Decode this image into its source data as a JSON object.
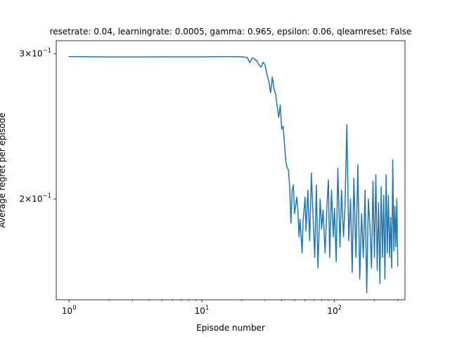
{
  "chart_data": {
    "type": "line",
    "title": "resetrate: 0.04, learningrate: 0.0005, gamma: 0.965, epsilon: 0.06, qlearnreset: False",
    "xlabel": "Episode number",
    "ylabel": "Average regret per episode",
    "xscale": "log",
    "yscale": "log",
    "xlim": [
      0.8,
      340
    ],
    "ylim": [
      0.151,
      0.311
    ],
    "x_ticks": [
      {
        "value": 1,
        "base": "10",
        "exp": "0"
      },
      {
        "value": 10,
        "base": "10",
        "exp": "1"
      },
      {
        "value": 100,
        "base": "10",
        "exp": "2"
      }
    ],
    "y_ticks": [
      {
        "value": 0.2,
        "mant": "2",
        "base": "10",
        "exp": "−1"
      },
      {
        "value": 0.3,
        "mant": "3",
        "base": "10",
        "exp": "−1"
      }
    ],
    "grid": false,
    "legend": "none",
    "series": [
      {
        "color": "#1f77b4",
        "points": [
          [
            1,
            0.2975
          ],
          [
            2,
            0.2972
          ],
          [
            3,
            0.2972
          ],
          [
            5,
            0.2973
          ],
          [
            10,
            0.2973
          ],
          [
            15,
            0.2975
          ],
          [
            20,
            0.2974
          ],
          [
            22,
            0.2968
          ],
          [
            23,
            0.2925
          ],
          [
            24,
            0.2965
          ],
          [
            25,
            0.2955
          ],
          [
            26,
            0.294
          ],
          [
            27,
            0.2905
          ],
          [
            28,
            0.289
          ],
          [
            29,
            0.293
          ],
          [
            30,
            0.2905
          ],
          [
            31,
            0.283
          ],
          [
            32,
            0.278
          ],
          [
            33,
            0.269
          ],
          [
            34,
            0.281
          ],
          [
            35,
            0.272
          ],
          [
            36,
            0.268
          ],
          [
            37,
            0.259
          ],
          [
            38,
            0.251
          ],
          [
            39,
            0.26
          ],
          [
            40,
            0.243
          ],
          [
            41,
            0.245
          ],
          [
            42,
            0.233
          ],
          [
            43,
            0.222
          ],
          [
            44,
            0.218
          ],
          [
            45,
            0.217
          ],
          [
            46,
            0.206
          ],
          [
            47,
            0.187
          ],
          [
            48,
            0.205
          ],
          [
            49,
            0.208
          ],
          [
            50,
            0.192
          ],
          [
            52,
            0.201
          ],
          [
            53,
            0.194
          ],
          [
            54,
            0.18
          ],
          [
            55,
            0.189
          ],
          [
            57,
            0.172
          ],
          [
            58,
            0.188
          ],
          [
            60,
            0.201
          ],
          [
            61,
            0.183
          ],
          [
            63,
            0.205
          ],
          [
            65,
            0.178
          ],
          [
            67,
            0.215
          ],
          [
            69,
            0.19
          ],
          [
            71,
            0.17
          ],
          [
            73,
            0.208
          ],
          [
            75,
            0.165
          ],
          [
            78,
            0.2
          ],
          [
            80,
            0.184
          ],
          [
            82,
            0.194
          ],
          [
            85,
            0.172
          ],
          [
            88,
            0.198
          ],
          [
            90,
            0.211
          ],
          [
            92,
            0.17
          ],
          [
            95,
            0.205
          ],
          [
            98,
            0.18
          ],
          [
            100,
            0.195
          ],
          [
            103,
            0.168
          ],
          [
            106,
            0.218
          ],
          [
            110,
            0.175
          ],
          [
            113,
            0.205
          ],
          [
            117,
            0.18
          ],
          [
            120,
            0.196
          ],
          [
            124,
            0.246
          ],
          [
            128,
            0.178
          ],
          [
            132,
            0.2
          ],
          [
            136,
            0.163
          ],
          [
            140,
            0.212
          ],
          [
            145,
            0.17
          ],
          [
            150,
            0.22
          ],
          [
            155,
            0.16
          ],
          [
            160,
            0.192
          ],
          [
            165,
            0.17
          ],
          [
            170,
            0.205
          ],
          [
            175,
            0.154
          ],
          [
            180,
            0.2
          ],
          [
            185,
            0.185
          ],
          [
            190,
            0.165
          ],
          [
            195,
            0.21
          ],
          [
            200,
            0.17
          ],
          [
            205,
            0.214
          ],
          [
            210,
            0.164
          ],
          [
            215,
            0.198
          ],
          [
            220,
            0.158
          ],
          [
            225,
            0.207
          ],
          [
            230,
            0.17
          ],
          [
            235,
            0.202
          ],
          [
            240,
            0.16
          ],
          [
            245,
            0.214
          ],
          [
            250,
            0.172
          ],
          [
            255,
            0.202
          ],
          [
            260,
            0.17
          ],
          [
            265,
            0.19
          ],
          [
            270,
            0.165
          ],
          [
            275,
            0.223
          ],
          [
            280,
            0.173
          ],
          [
            285,
            0.196
          ],
          [
            290,
            0.175
          ],
          [
            295,
            0.2
          ],
          [
            300,
            0.166
          ]
        ]
      }
    ]
  }
}
